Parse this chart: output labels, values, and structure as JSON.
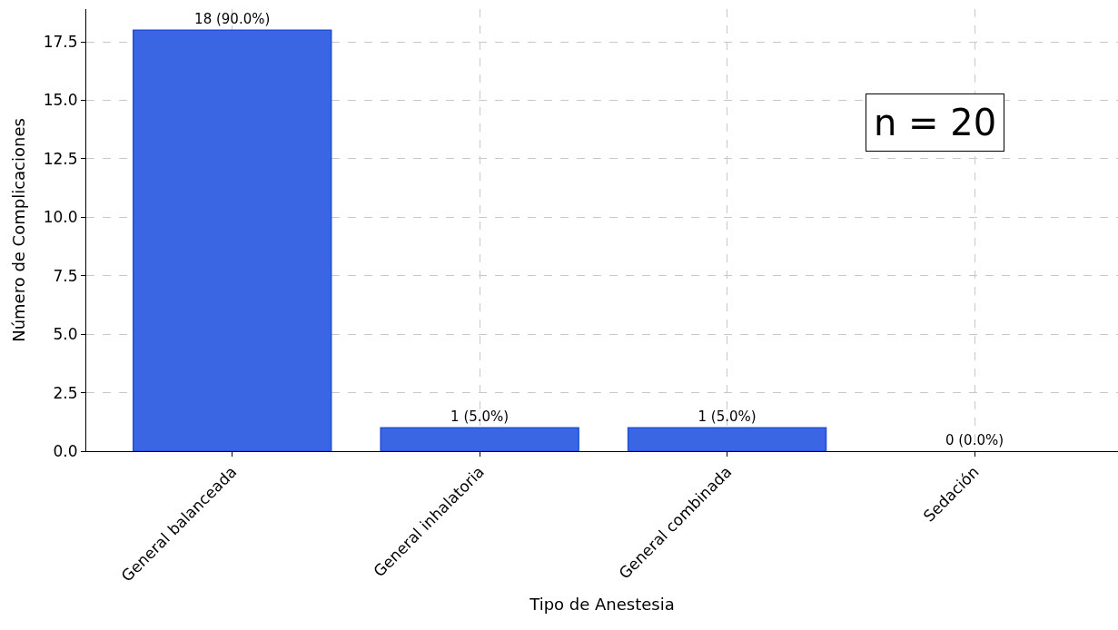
{
  "chart_data": {
    "type": "bar",
    "xlabel": "Tipo de Anestesia",
    "ylabel": "Número de Complicaciones",
    "categories": [
      "General balanceada",
      "General inhalatoria",
      "General combinada",
      "Sedación"
    ],
    "values": [
      18,
      1,
      1,
      0
    ],
    "value_labels": [
      "18 (90.0%)",
      "1 (5.0%)",
      "1 (5.0%)",
      "0 (0.0%)"
    ],
    "color": "#3a66e3",
    "ylim": [
      0,
      18.9
    ],
    "yticks": [
      {
        "value": 0,
        "label": "0.0"
      },
      {
        "value": 2.5,
        "label": "2.5"
      },
      {
        "value": 5,
        "label": "5.0"
      },
      {
        "value": 7.5,
        "label": "7.5"
      },
      {
        "value": 10,
        "label": "10.0"
      },
      {
        "value": 12.5,
        "label": "12.5"
      },
      {
        "value": 15,
        "label": "15.0"
      },
      {
        "value": 17.5,
        "label": "17.5"
      }
    ],
    "grid": true,
    "annotations": [
      "n = 20"
    ]
  }
}
